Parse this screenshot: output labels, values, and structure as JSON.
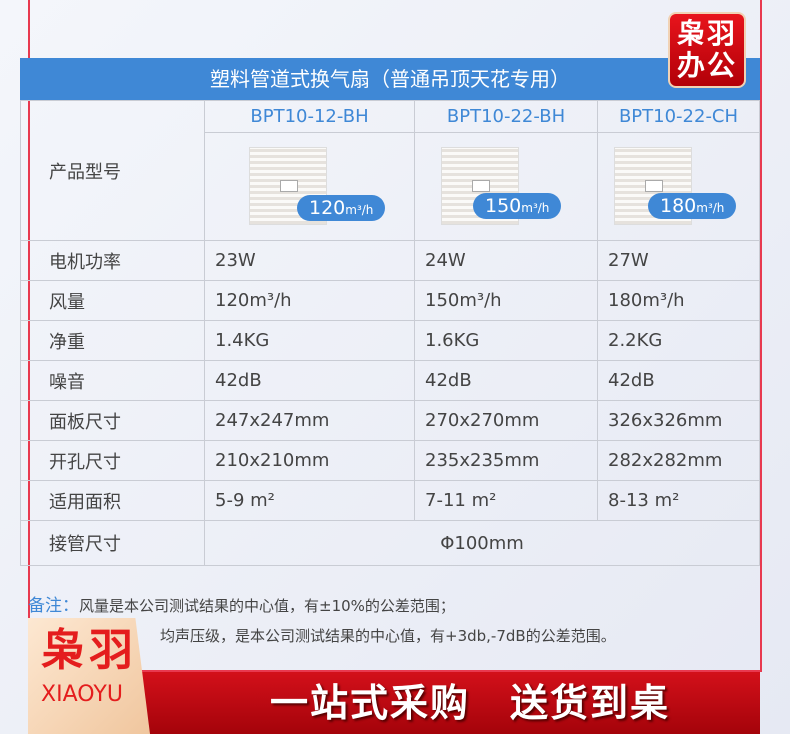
{
  "brand_badge": {
    "line1": "枭羽",
    "line2": "办公"
  },
  "header": {
    "title": "塑料管道式换气扇（普通吊顶天花专用）"
  },
  "table": {
    "model_label": "产品型号",
    "products": [
      {
        "model": "BPT10-12-BH",
        "flow_num": "120",
        "flow_unit": "m³/h"
      },
      {
        "model": "BPT10-22-BH",
        "flow_num": "150",
        "flow_unit": "m³/h"
      },
      {
        "model": "BPT10-22-CH",
        "flow_num": "180",
        "flow_unit": "m³/h"
      }
    ],
    "rows": [
      {
        "label": "电机功率",
        "values": [
          "23W",
          "24W",
          "27W"
        ]
      },
      {
        "label": "风量",
        "values": [
          "120m³/h",
          "150m³/h",
          "180m³/h"
        ]
      },
      {
        "label": "净重",
        "values": [
          "1.4KG",
          "1.6KG",
          "2.2KG"
        ]
      },
      {
        "label": "噪音",
        "values": [
          "42dB",
          "42dB",
          "42dB"
        ]
      },
      {
        "label": "面板尺寸",
        "values": [
          "247x247mm",
          "270x270mm",
          "326x326mm"
        ]
      },
      {
        "label": "开孔尺寸",
        "values": [
          "210x210mm",
          "235x235mm",
          "282x282mm"
        ]
      },
      {
        "label": "适用面积",
        "values": [
          "5-9 m²",
          "7-11 m²",
          "8-13 m²"
        ]
      }
    ],
    "pipe": {
      "label": "接管尺寸",
      "value": "Φ100mm"
    }
  },
  "notes": {
    "prefix": "备注：",
    "line1": "风量是本公司测试结果的中心值，有±10%的公差范围；",
    "line2": "均声压级，是本公司测试结果的中心值，有+3db,-7dB的公差范围。"
  },
  "logo": {
    "cn": "枭羽",
    "en": "XIAOYU"
  },
  "banner": {
    "text": "一站式采购　送货到桌"
  },
  "colors": {
    "accent": "#3f88d6",
    "red": "#d3101a"
  }
}
